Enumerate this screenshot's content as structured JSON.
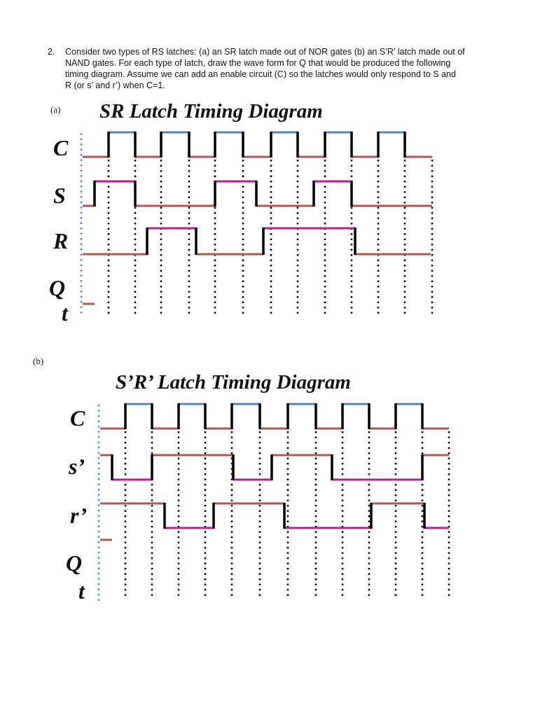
{
  "question": {
    "number": "2.",
    "lines": [
      "Consider two types of RS latches: (a) an SR latch made out of NOR gates (b) an S’R’ latch made out of",
      "NAND gates.  For each type of latch, draw the wave form for Q that would be produced the following",
      "timing diagram.   Assume we can add an enable circuit (C) so the latches would only respond to S and",
      "R (or s’ and r’) when C=1."
    ]
  },
  "part_a": {
    "label": "(a)",
    "title": "SR Latch Timing Diagram",
    "signals": [
      "C",
      "S",
      "R",
      "Q",
      "t"
    ]
  },
  "part_b": {
    "label": "(b)",
    "title": "S’R’ Latch Timing Diagram",
    "signals": [
      "C",
      "s’",
      "r’",
      "Q",
      "t"
    ]
  }
}
